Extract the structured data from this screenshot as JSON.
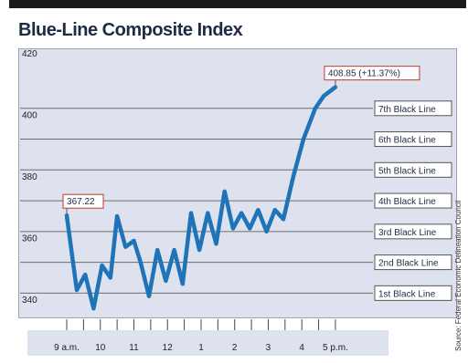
{
  "title": "Blue-Line Composite Index",
  "source": "Source: Federal Economic Delineation Council",
  "colors": {
    "line": "#1f73b7",
    "plot_bg": "#dde2ee",
    "callout_border": "#c0392b"
  },
  "chart_data": {
    "type": "line",
    "title": "Blue-Line Composite Index",
    "xlabel": "",
    "ylabel": "",
    "ylim": [
      335,
      420
    ],
    "y_ticks": [
      340,
      360,
      380,
      400,
      420
    ],
    "x_ticks": [
      {
        "label": "9 a.m.",
        "x": 0
      },
      {
        "label": "10",
        "x": 1
      },
      {
        "label": "11",
        "x": 2
      },
      {
        "label": "12",
        "x": 3
      },
      {
        "label": "1",
        "x": 4
      },
      {
        "label": "2",
        "x": 5
      },
      {
        "label": "3",
        "x": 6
      },
      {
        "label": "4",
        "x": 7
      },
      {
        "label": "5 p.m.",
        "x": 8
      }
    ],
    "x_minor_ticks": [
      0,
      0.5,
      1,
      1.5,
      2,
      2.5,
      3,
      3.5,
      4,
      4.5,
      5,
      5.5,
      6,
      6.5,
      7,
      7.5,
      8
    ],
    "xlim": [
      -0.3,
      8.9
    ],
    "reference_lines": [
      {
        "label": "7th Black Line",
        "value": 402
      },
      {
        "label": "6th Black Line",
        "value": 392
      },
      {
        "label": "5th Black Line",
        "value": 382
      },
      {
        "label": "4th Black Line",
        "value": 372
      },
      {
        "label": "3rd Black Line",
        "value": 362
      },
      {
        "label": "2nd Black Line",
        "value": 352
      },
      {
        "label": "1st Black Line",
        "value": 342
      }
    ],
    "series": [
      {
        "x": [
          0,
          0.3,
          0.55,
          0.8,
          1.05,
          1.3,
          1.5,
          1.75,
          2.0,
          2.2,
          2.45,
          2.7,
          2.95,
          3.2,
          3.45,
          3.7,
          3.95,
          4.2,
          4.45,
          4.7,
          4.95,
          5.2,
          5.45,
          5.7,
          5.95,
          6.2,
          6.45,
          6.75,
          7.05,
          7.4,
          7.65,
          8.0
        ],
        "y": [
          367.22,
          343,
          348,
          337,
          351,
          347,
          367,
          357,
          359,
          352,
          341,
          356,
          346,
          356,
          345,
          368,
          356,
          368,
          358,
          375,
          363,
          368,
          363,
          369,
          362,
          369,
          366,
          380,
          392,
          402,
          406,
          408.85
        ]
      }
    ],
    "annotations": [
      {
        "text": "367.22",
        "x": 0,
        "y": 367.22
      },
      {
        "text": "408.85 (+11.37%)",
        "x": 8.0,
        "y": 408.85
      }
    ]
  }
}
